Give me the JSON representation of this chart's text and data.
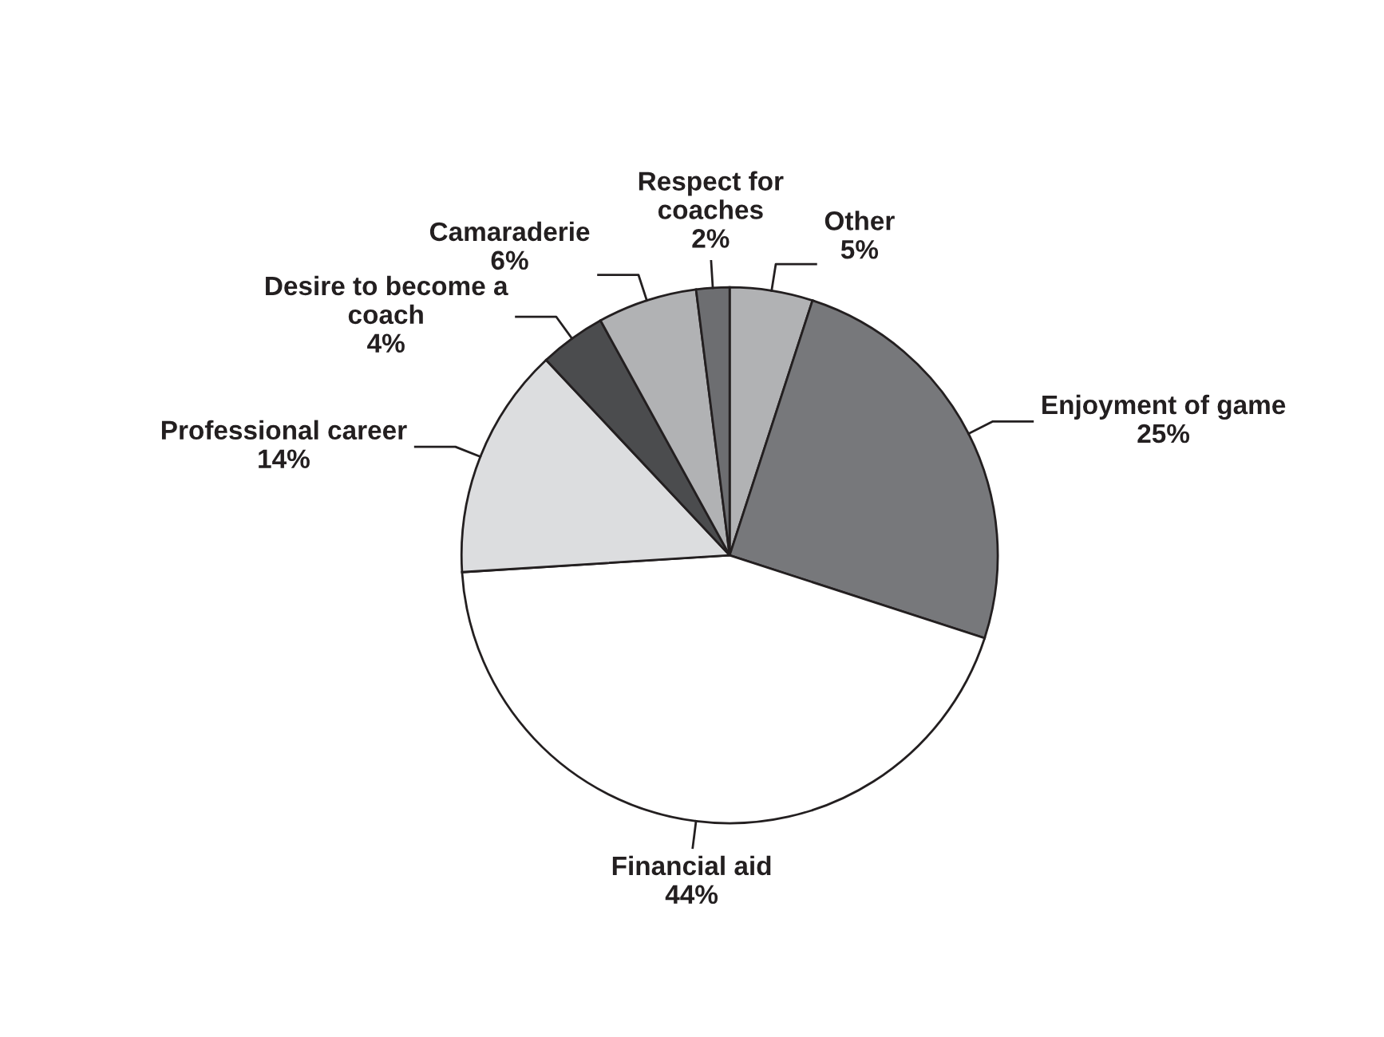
{
  "chart_data": {
    "type": "pie",
    "categories": [
      "Other",
      "Enjoyment of game",
      "Financial aid",
      "Professional career",
      "Desire to become a coach",
      "Camaraderie",
      "Respect for coaches"
    ],
    "values": [
      5,
      25,
      44,
      14,
      4,
      6,
      2
    ],
    "colors": [
      "#b1b2b4",
      "#77787b",
      "#ffffff",
      "#dcdddf",
      "#4b4c4e",
      "#b1b2b4",
      "#6d6e71"
    ],
    "value_labels": [
      "5%",
      "25%",
      "44%",
      "14%",
      "4%",
      "6%",
      "2%"
    ]
  }
}
